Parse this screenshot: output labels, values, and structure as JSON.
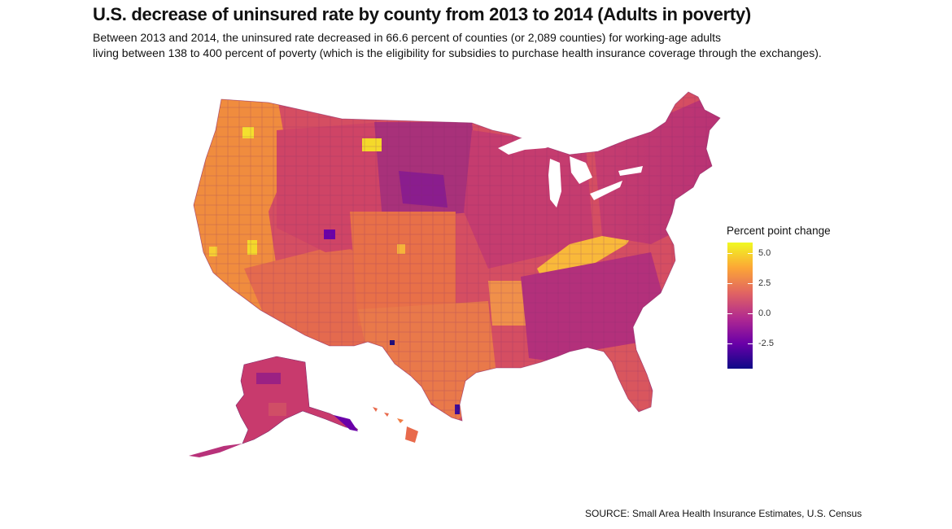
{
  "title": "U.S. decrease of uninsured rate by county from 2013 to 2014 (Adults in poverty)",
  "subtitle": {
    "line1": "Between 2013 and 2014, the uninsured rate decreased in 66.6 percent of counties (or 2,089 counties) for working-age adults",
    "line2": "living between 138 to 400 percent of poverty (which is the eligibility for subsidies to purchase health insurance coverage through the exchanges)."
  },
  "legend": {
    "title": "Percent point change",
    "ticks": [
      {
        "label": "5.0",
        "value": 5.0
      },
      {
        "label": "2.5",
        "value": 2.5
      },
      {
        "label": "0.0",
        "value": 0.0
      },
      {
        "label": "-2.5",
        "value": -2.5
      }
    ],
    "min": -4.6,
    "max": 5.9,
    "colors": [
      "#0d0887",
      "#6a00a8",
      "#b12a90",
      "#e16462",
      "#fca636",
      "#f0f921"
    ]
  },
  "source": "SOURCE: Small Area Health Insurance Estimates, U.S. Census"
}
